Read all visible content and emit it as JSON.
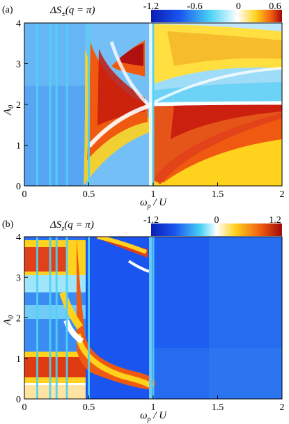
{
  "figure": {
    "panels": [
      {
        "label": "(a)",
        "title": "ΔS±(q = π)",
        "title_symbol": "ΔS",
        "title_sub": "±",
        "title_arg": "(q = π)",
        "xlabel_main": "ω",
        "xlabel_sub": "p",
        "xlabel_tail": " / U",
        "ylabel_main": "A",
        "ylabel_sub": "0",
        "colorbar": {
          "min": -1.2,
          "max": 0.6,
          "ticks": [
            "-1.2",
            "-0.6",
            "0",
            "0.6"
          ],
          "tick_values": [
            -1.2,
            -0.6,
            0,
            0.6
          ],
          "colormap": "jet-like diverging (blue → cyan → white → yellow → red)"
        }
      },
      {
        "label": "(b)",
        "title": "ΔSz(q = π)",
        "title_symbol": "ΔS",
        "title_sub": "z",
        "title_arg": "(q = π)",
        "xlabel_main": "ω",
        "xlabel_sub": "p",
        "xlabel_tail": " / U",
        "ylabel_main": "A",
        "ylabel_sub": "0",
        "colorbar": {
          "min": -1.2,
          "max": 1.2,
          "ticks": [
            "-1.2",
            "0",
            "1.2"
          ],
          "tick_values": [
            -1.2,
            0,
            1.2
          ],
          "colormap": "jet-like diverging (blue → cyan → white → yellow → red)"
        }
      }
    ]
  },
  "chart_data": [
    {
      "type": "heatmap",
      "title": "ΔS±(q = π)",
      "xlabel": "ωp / U",
      "ylabel": "A0",
      "xlim": [
        0,
        2
      ],
      "ylim": [
        0,
        4
      ],
      "xticks": [
        0,
        0.5,
        1,
        1.5,
        2
      ],
      "xtick_labels": [
        "0",
        "0.5",
        "1",
        "1.5",
        "2"
      ],
      "yticks": [
        0,
        1,
        2,
        3,
        4
      ],
      "ytick_labels": [
        "0",
        "1",
        "2",
        "3",
        "4"
      ],
      "value_range": [
        -1.2,
        0.6
      ],
      "features": {
        "left_region_value": -0.5,
        "vertical_resonance_lines_x": [
          0.1,
          0.2,
          0.25,
          0.33,
          0.5,
          1.0
        ],
        "right_region_bands": [
          {
            "y": [
              0.0,
              2.0
            ],
            "x": [
              1.0,
              2.0
            ],
            "peak_value": 0.55
          },
          {
            "y": [
              2.2,
              2.8
            ],
            "x": [
              1.0,
              2.0
            ],
            "peak_value": -0.4
          },
          {
            "y": [
              2.8,
              4.0
            ],
            "x": [
              1.0,
              2.0
            ],
            "peak_value": 0.3
          }
        ],
        "fan_region": {
          "x": [
            0.33,
            1.0
          ],
          "peak_value": 0.55
        }
      }
    },
    {
      "type": "heatmap",
      "title": "ΔSz(q = π)",
      "xlabel": "ωp / U",
      "ylabel": "A0",
      "xlim": [
        0,
        2
      ],
      "ylim": [
        0,
        4
      ],
      "xticks": [
        0,
        0.5,
        1,
        1.5,
        2
      ],
      "xtick_labels": [
        "0",
        "0.5",
        "1",
        "1.5",
        "2"
      ],
      "yticks": [
        0,
        1,
        2,
        3,
        4
      ],
      "ytick_labels": [
        "0",
        "1",
        "2",
        "3",
        "4"
      ],
      "value_range": [
        -1.2,
        1.2
      ],
      "features": {
        "right_region_value": -0.9,
        "vertical_resonance_lines_x": [
          0.1,
          0.2,
          0.25,
          0.33,
          0.5,
          1.0
        ],
        "left_band_y": [
          0.6,
          1.0
        ],
        "left_band_peak_value": 1.1,
        "top_band_y": [
          3.2,
          3.8
        ],
        "top_band_peak_value": 1.0
      }
    }
  ]
}
